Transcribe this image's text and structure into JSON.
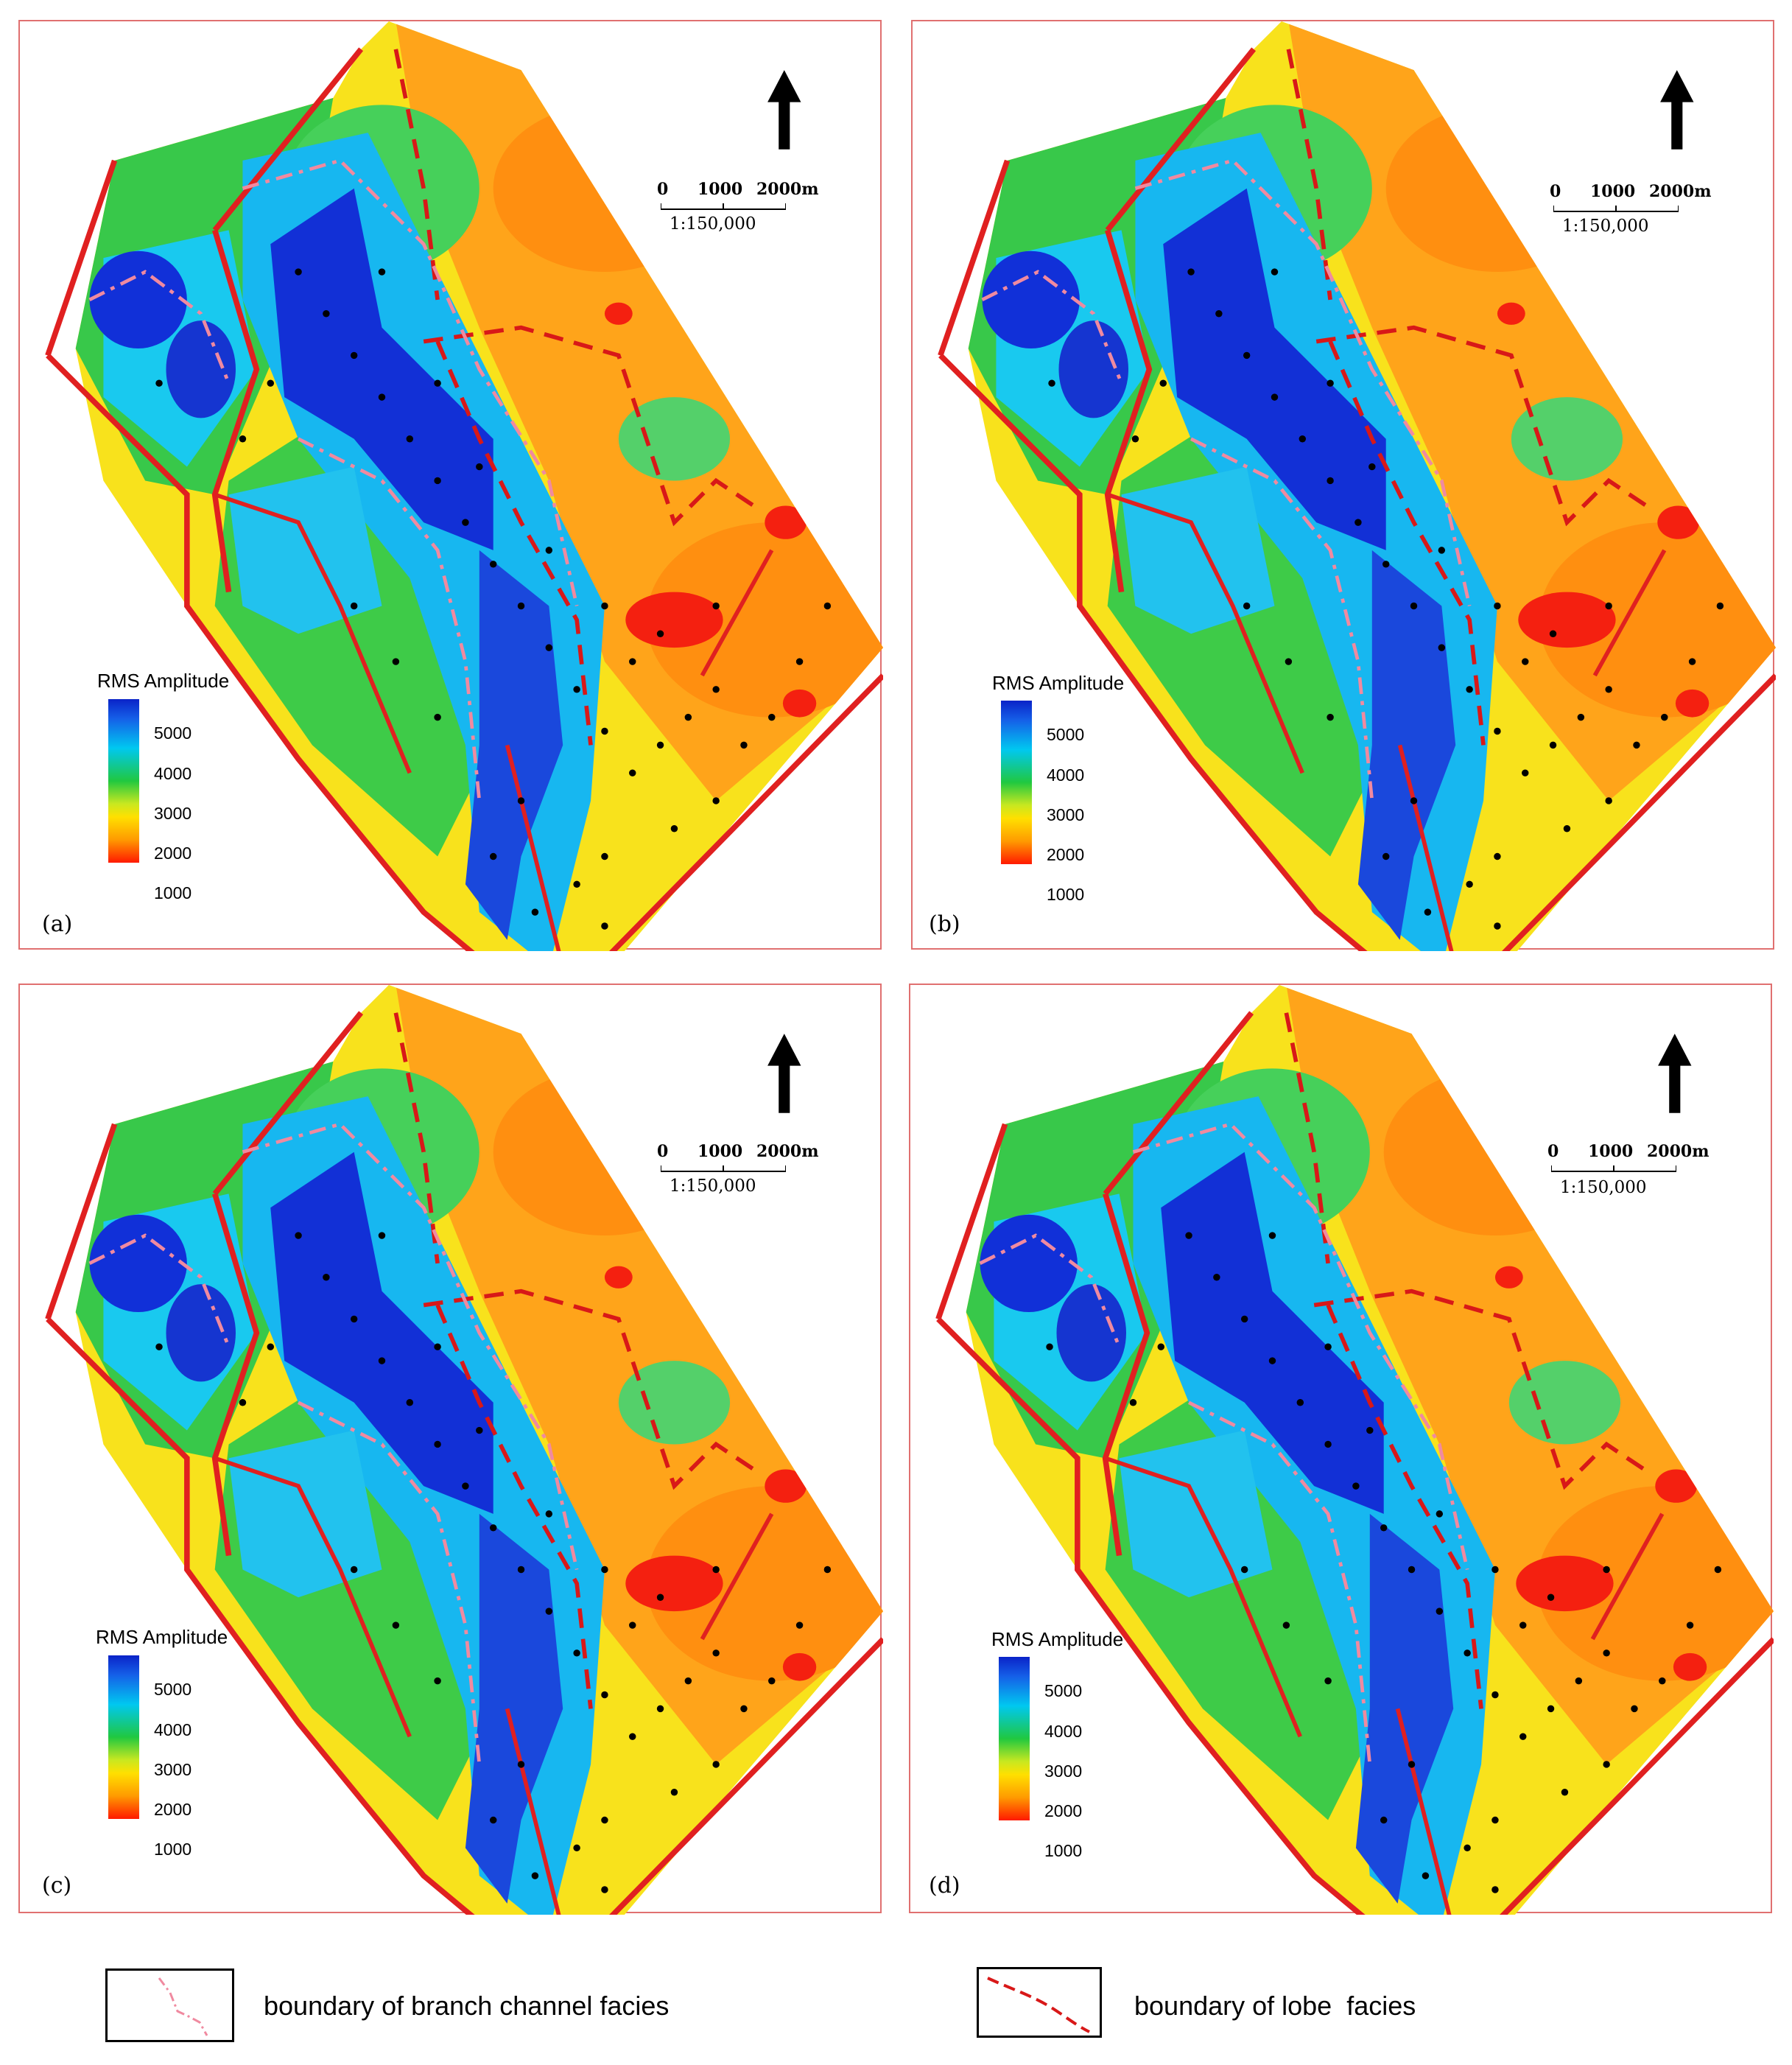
{
  "panels": [
    {
      "label": "(a)"
    },
    {
      "label": "(b)"
    },
    {
      "label": "(c)"
    },
    {
      "label": "(d)"
    }
  ],
  "colorbar": {
    "title": "RMS Amplitude",
    "ticks": [
      "5000",
      "4000",
      "3000",
      "2000",
      "1000"
    ],
    "stops": [
      "#0a23c8",
      "#00c8f0",
      "#20c840",
      "#ffe000",
      "#ff9a00",
      "#ff1a00"
    ]
  },
  "scale_bar": {
    "labels": [
      "0",
      "1000",
      "2000m"
    ],
    "ratio": "1:150,000"
  },
  "north_arrow": {
    "icon": "north-arrow-icon"
  },
  "legend": {
    "branch_channel_label": "boundary of branch channel facies",
    "lobe_label": "boundary of lobe  facies",
    "branch_channel_color": "#f08aa0",
    "lobe_color": "#d81818",
    "fault_color": "#e02020"
  }
}
